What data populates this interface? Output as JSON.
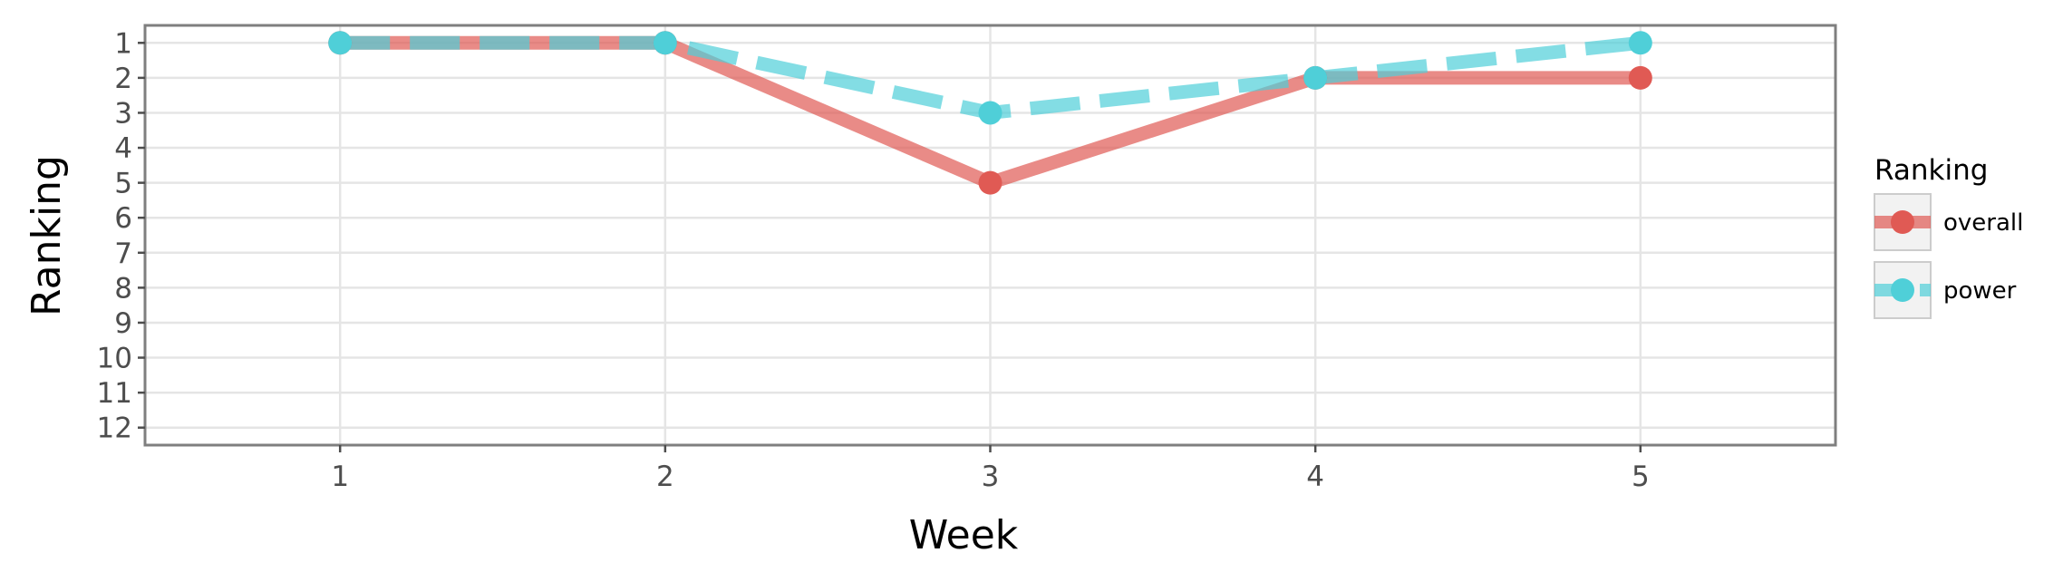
{
  "chart_data": {
    "type": "line",
    "title": "",
    "xlabel": "Week",
    "ylabel": "Ranking",
    "x": [
      1,
      2,
      3,
      4,
      5
    ],
    "x_ticks": [
      "1",
      "2",
      "3",
      "4",
      "5"
    ],
    "xlim": [
      0.4,
      5.6
    ],
    "y_ticks": [
      "1",
      "2",
      "3",
      "4",
      "5",
      "6",
      "7",
      "8",
      "9",
      "10",
      "11",
      "12"
    ],
    "ylim": [
      12.5,
      0.5
    ],
    "y_reversed": true,
    "grid": true,
    "legend": {
      "title": "Ranking",
      "position": "right"
    },
    "series": [
      {
        "name": "overall",
        "values": [
          1,
          1,
          5,
          2,
          2
        ],
        "color": "#E05A54",
        "line_style": "solid"
      },
      {
        "name": "power",
        "values": [
          1,
          1,
          3,
          2,
          1
        ],
        "color": "#4FCFD8",
        "line_style": "dashed"
      }
    ]
  }
}
